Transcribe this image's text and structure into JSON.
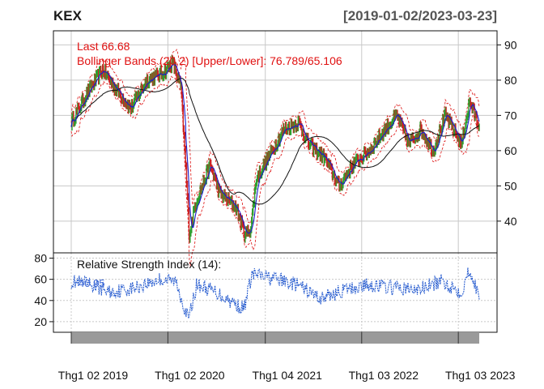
{
  "header": {
    "symbol": "KEX",
    "date_range": "[2019-01-02/2023-03-23]"
  },
  "colors": {
    "price_up": "#2e9e2e",
    "price_down": "#cc2222",
    "bollinger_band": "#dd1111",
    "bollinger_mid": "#1a1acc",
    "long_ma": "#111111",
    "rsi_line": "#2b5fd0",
    "grid": "#c8c8c8",
    "axis_strip": "#9a9a9a"
  },
  "chart_data": [
    {
      "type": "line",
      "panel": "price",
      "title": "KEX",
      "subtitle": "[2019-01-02/2023-03-23]",
      "legend_text_last": "Last 66.68",
      "legend_text_bbands": "Bollinger Bands (20,2) [Upper/Lower]: 76.789/65.106",
      "ylim": [
        31,
        94
      ],
      "yticks": [
        40,
        50,
        60,
        70,
        80,
        90
      ],
      "x_start": "2019-01-02",
      "x_end": "2023-03-23",
      "grid": true,
      "price_keypoints": [
        [
          "2019-01-02",
          68
        ],
        [
          "2019-03-01",
          76
        ],
        [
          "2019-05-01",
          83
        ],
        [
          "2019-06-15",
          78
        ],
        [
          "2019-08-15",
          72
        ],
        [
          "2019-10-15",
          80
        ],
        [
          "2019-12-15",
          82
        ],
        [
          "2020-01-20",
          85
        ],
        [
          "2020-02-20",
          78
        ],
        [
          "2020-03-10",
          55
        ],
        [
          "2020-03-23",
          36
        ],
        [
          "2020-04-15",
          45
        ],
        [
          "2020-06-10",
          56
        ],
        [
          "2020-07-15",
          48
        ],
        [
          "2020-09-15",
          44
        ],
        [
          "2020-10-20",
          36
        ],
        [
          "2020-11-10",
          38
        ],
        [
          "2020-12-01",
          52
        ],
        [
          "2021-01-15",
          58
        ],
        [
          "2021-03-15",
          66
        ],
        [
          "2021-05-10",
          68
        ],
        [
          "2021-06-15",
          62
        ],
        [
          "2021-08-15",
          58
        ],
        [
          "2021-10-10",
          50
        ],
        [
          "2021-12-01",
          56
        ],
        [
          "2022-02-01",
          60
        ],
        [
          "2022-04-01",
          66
        ],
        [
          "2022-05-15",
          70
        ],
        [
          "2022-07-01",
          62
        ],
        [
          "2022-08-15",
          66
        ],
        [
          "2022-09-30",
          60
        ],
        [
          "2022-11-15",
          70
        ],
        [
          "2023-01-15",
          62
        ],
        [
          "2023-02-15",
          74
        ],
        [
          "2023-03-23",
          66.68
        ]
      ]
    },
    {
      "type": "line",
      "panel": "indicator",
      "legend_text": "Relative Strength Index (14):",
      "legend_value": "40.95",
      "ylim": [
        10,
        85
      ],
      "yticks": [
        20,
        40,
        60,
        80
      ],
      "grid": true,
      "rsi_keypoints": [
        [
          "2019-01-02",
          58
        ],
        [
          "2019-03-15",
          55
        ],
        [
          "2019-06-01",
          48
        ],
        [
          "2019-09-01",
          52
        ],
        [
          "2019-12-01",
          60
        ],
        [
          "2020-02-01",
          58
        ],
        [
          "2020-03-20",
          22
        ],
        [
          "2020-04-20",
          55
        ],
        [
          "2020-07-01",
          48
        ],
        [
          "2020-10-15",
          32
        ],
        [
          "2020-11-15",
          65
        ],
        [
          "2021-02-15",
          60
        ],
        [
          "2021-05-01",
          55
        ],
        [
          "2021-08-01",
          42
        ],
        [
          "2021-11-01",
          50
        ],
        [
          "2022-02-01",
          55
        ],
        [
          "2022-05-01",
          52
        ],
        [
          "2022-08-01",
          50
        ],
        [
          "2022-11-01",
          58
        ],
        [
          "2023-01-15",
          48
        ],
        [
          "2023-02-15",
          70
        ],
        [
          "2023-03-23",
          40.95
        ]
      ],
      "xticks": [
        {
          "date": "2019-01-02",
          "label": "Thg1 02 2019"
        },
        {
          "date": "2020-01-02",
          "label": "Thg1 02 2020"
        },
        {
          "date": "2021-01-04",
          "label": "Thg1 04 2021"
        },
        {
          "date": "2022-01-03",
          "label": "Thg1 03 2022"
        },
        {
          "date": "2023-01-03",
          "label": "Thg1 03 2023"
        }
      ]
    }
  ]
}
